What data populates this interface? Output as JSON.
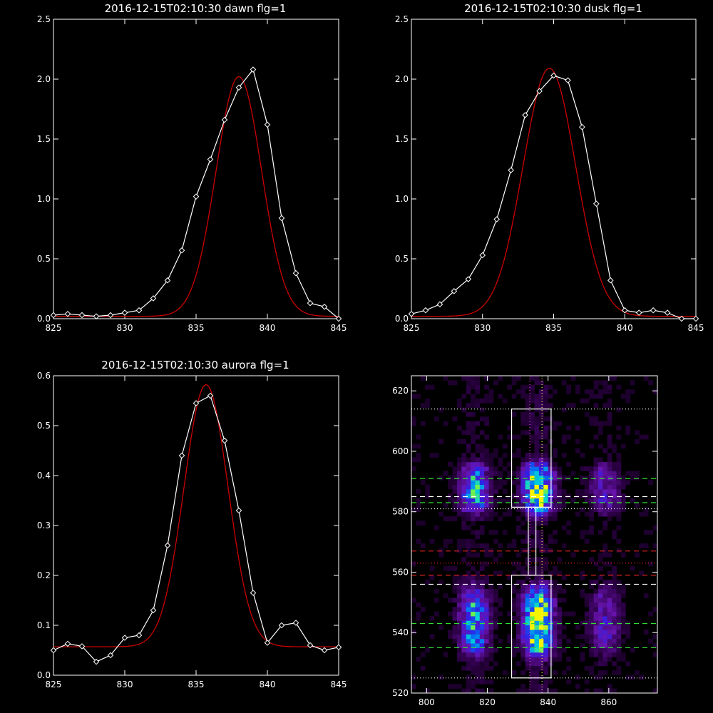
{
  "colors": {
    "background": "#000000",
    "axis": "#ffffff",
    "data_line": "#ffffff",
    "fit_line": "#cc0000",
    "green_dash": "#33dd33",
    "red_dash": "#dd2222",
    "white_dash": "#ffffff",
    "magenta_dot": "#ee44ee",
    "yellow_dot": "#ffee66"
  },
  "chart_data": [
    {
      "type": "line",
      "title": "2016-12-15T02:10:30 dawn flg=1",
      "xlim": [
        825,
        845
      ],
      "ylim": [
        0,
        2.5
      ],
      "xticks": [
        825,
        830,
        835,
        840,
        845
      ],
      "yticks": [
        0.0,
        0.5,
        1.0,
        1.5,
        2.0,
        2.5
      ],
      "ytick_labels": [
        "0.0",
        "0.5",
        "1.0",
        "1.5",
        "2.0",
        "2.5"
      ],
      "series": [
        {
          "role": "measured",
          "marker": "diamond",
          "x": [
            825,
            826,
            827,
            828,
            829,
            830,
            831,
            832,
            833,
            834,
            835,
            836,
            837,
            838,
            839,
            840,
            841,
            842,
            843,
            844,
            845
          ],
          "y": [
            0.03,
            0.04,
            0.03,
            0.02,
            0.03,
            0.05,
            0.07,
            0.17,
            0.32,
            0.57,
            1.02,
            1.33,
            1.66,
            1.93,
            2.08,
            1.62,
            0.84,
            0.38,
            0.13,
            0.1,
            0.0
          ]
        },
        {
          "role": "fit",
          "gaussian": {
            "amp": 2.0,
            "center": 838.0,
            "sigma": 1.6,
            "base": 0.02
          }
        }
      ]
    },
    {
      "type": "line",
      "title": "2016-12-15T02:10:30 dusk flg=1",
      "xlim": [
        825,
        845
      ],
      "ylim": [
        0,
        2.5
      ],
      "xticks": [
        825,
        830,
        835,
        840,
        845
      ],
      "yticks": [
        0.0,
        0.5,
        1.0,
        1.5,
        2.0,
        2.5
      ],
      "ytick_labels": [
        "0.0",
        "0.5",
        "1.0",
        "1.5",
        "2.0",
        "2.5"
      ],
      "series": [
        {
          "role": "measured",
          "marker": "diamond",
          "x": [
            825,
            826,
            827,
            828,
            829,
            830,
            831,
            832,
            833,
            834,
            835,
            836,
            837,
            838,
            839,
            840,
            841,
            842,
            843,
            844,
            845
          ],
          "y": [
            0.04,
            0.07,
            0.12,
            0.23,
            0.33,
            0.53,
            0.83,
            1.24,
            1.7,
            1.9,
            2.03,
            1.99,
            1.6,
            0.96,
            0.32,
            0.07,
            0.05,
            0.07,
            0.05,
            0.0,
            0.0
          ]
        },
        {
          "role": "fit",
          "gaussian": {
            "amp": 2.07,
            "center": 834.7,
            "sigma": 1.85,
            "base": 0.02
          }
        }
      ]
    },
    {
      "type": "line",
      "title": "2016-12-15T02:10:30 aurora flg=1",
      "xlim": [
        825,
        845
      ],
      "ylim": [
        0,
        0.6
      ],
      "xticks": [
        825,
        830,
        835,
        840,
        845
      ],
      "yticks": [
        0.0,
        0.1,
        0.2,
        0.3,
        0.4,
        0.5,
        0.6
      ],
      "ytick_labels": [
        "0.0",
        "0.1",
        "0.2",
        "0.3",
        "0.4",
        "0.5",
        "0.6"
      ],
      "series": [
        {
          "role": "measured",
          "marker": "diamond",
          "x": [
            825,
            826,
            827,
            828,
            829,
            830,
            831,
            832,
            833,
            834,
            835,
            836,
            837,
            838,
            839,
            840,
            841,
            842,
            843,
            844,
            845
          ],
          "y": [
            0.05,
            0.063,
            0.058,
            0.027,
            0.04,
            0.075,
            0.08,
            0.13,
            0.26,
            0.44,
            0.545,
            0.56,
            0.47,
            0.33,
            0.165,
            0.065,
            0.1,
            0.105,
            0.06,
            0.05,
            0.056
          ]
        },
        {
          "role": "fit",
          "gaussian": {
            "amp": 0.525,
            "center": 835.7,
            "sigma": 1.55,
            "base": 0.057
          }
        }
      ]
    },
    {
      "type": "heatmap",
      "title": "",
      "xlim": [
        795,
        876
      ],
      "ylim": [
        520,
        625
      ],
      "xticks": [
        800,
        820,
        840,
        860
      ],
      "yticks": [
        520,
        540,
        560,
        580,
        600,
        620
      ],
      "columns": [
        815,
        836,
        858
      ],
      "column_widths": [
        3.0,
        3.0,
        3.2
      ],
      "column_strengths": [
        0.6,
        1.0,
        0.28
      ],
      "bands": [
        {
          "center": 587,
          "halfwidth": 8
        },
        {
          "center": 543,
          "halfwidth": 11
        }
      ],
      "boxes": [
        {
          "x": [
            828,
            841
          ],
          "y": [
            581.5,
            614
          ]
        },
        {
          "x": [
            828,
            841
          ],
          "y": [
            525,
            559
          ]
        }
      ],
      "connector": {
        "x": [
          833.5,
          836
        ],
        "y": [
          559,
          581.5
        ]
      },
      "hlines": [
        {
          "y": 614,
          "style": "white-dotted"
        },
        {
          "y": 591,
          "style": "green-dashed"
        },
        {
          "y": 585,
          "style": "white-dashed"
        },
        {
          "y": 583,
          "style": "green-dashed"
        },
        {
          "y": 581,
          "style": "white-dotted"
        },
        {
          "y": 567,
          "style": "red-dashed"
        },
        {
          "y": 563,
          "style": "red-dotted"
        },
        {
          "y": 559,
          "style": "red-dashed"
        },
        {
          "y": 556,
          "style": "white-dashed"
        },
        {
          "y": 543,
          "style": "green-dashed"
        },
        {
          "y": 535,
          "style": "green-dashed"
        },
        {
          "y": 525,
          "style": "white-dotted"
        }
      ],
      "vlines": [
        {
          "x": 834,
          "style": "magenta-dotted"
        },
        {
          "x": 838,
          "style": "yellow-dotted"
        }
      ]
    }
  ]
}
